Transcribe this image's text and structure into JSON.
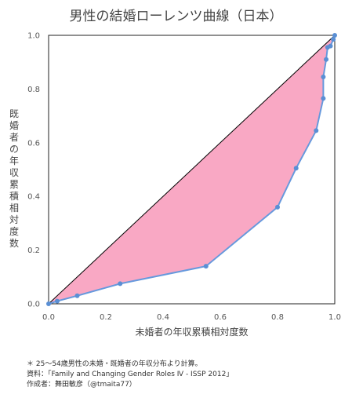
{
  "chart_data": {
    "type": "line",
    "title": "男性の結婚ローレンツ曲線（日本）",
    "xlabel": "未婚者の年収累積相対度数",
    "ylabel": "既婚者の年収累積相対度数",
    "xlim": [
      0,
      1
    ],
    "ylim": [
      0,
      1
    ],
    "x_ticks": [
      "0.0",
      "0.2",
      "0.4",
      "0.6",
      "0.8",
      "1.0"
    ],
    "y_ticks": [
      "0.0",
      "0.2",
      "0.4",
      "0.6",
      "0.8",
      "1.0"
    ],
    "grid": false,
    "legend": "none",
    "equality_line": [
      [
        0,
        0
      ],
      [
        1,
        1
      ]
    ],
    "series": [
      {
        "x": [
          0,
          0.03,
          0.1,
          0.25,
          0.55,
          0.8,
          0.865,
          0.935,
          0.96,
          0.96,
          0.97,
          0.975,
          0.985,
          0.995,
          1.0
        ],
        "y": [
          0,
          0.01,
          0.03,
          0.075,
          0.14,
          0.36,
          0.505,
          0.645,
          0.765,
          0.845,
          0.91,
          0.955,
          0.96,
          0.985,
          1.0
        ]
      }
    ],
    "colors": {
      "fill": "#f9a8c4",
      "line": "#6699dd",
      "marker": "#5a8fd4",
      "diagonal": "#000000"
    }
  },
  "notes": [
    "＊ 25〜54歳男性の未婚・既婚者の年収分布より計算。",
    "資料：「Family and Changing Gender Roles Ⅳ - ISSP 2012」",
    "作成者：舞田敏彦（@tmaita77）"
  ]
}
